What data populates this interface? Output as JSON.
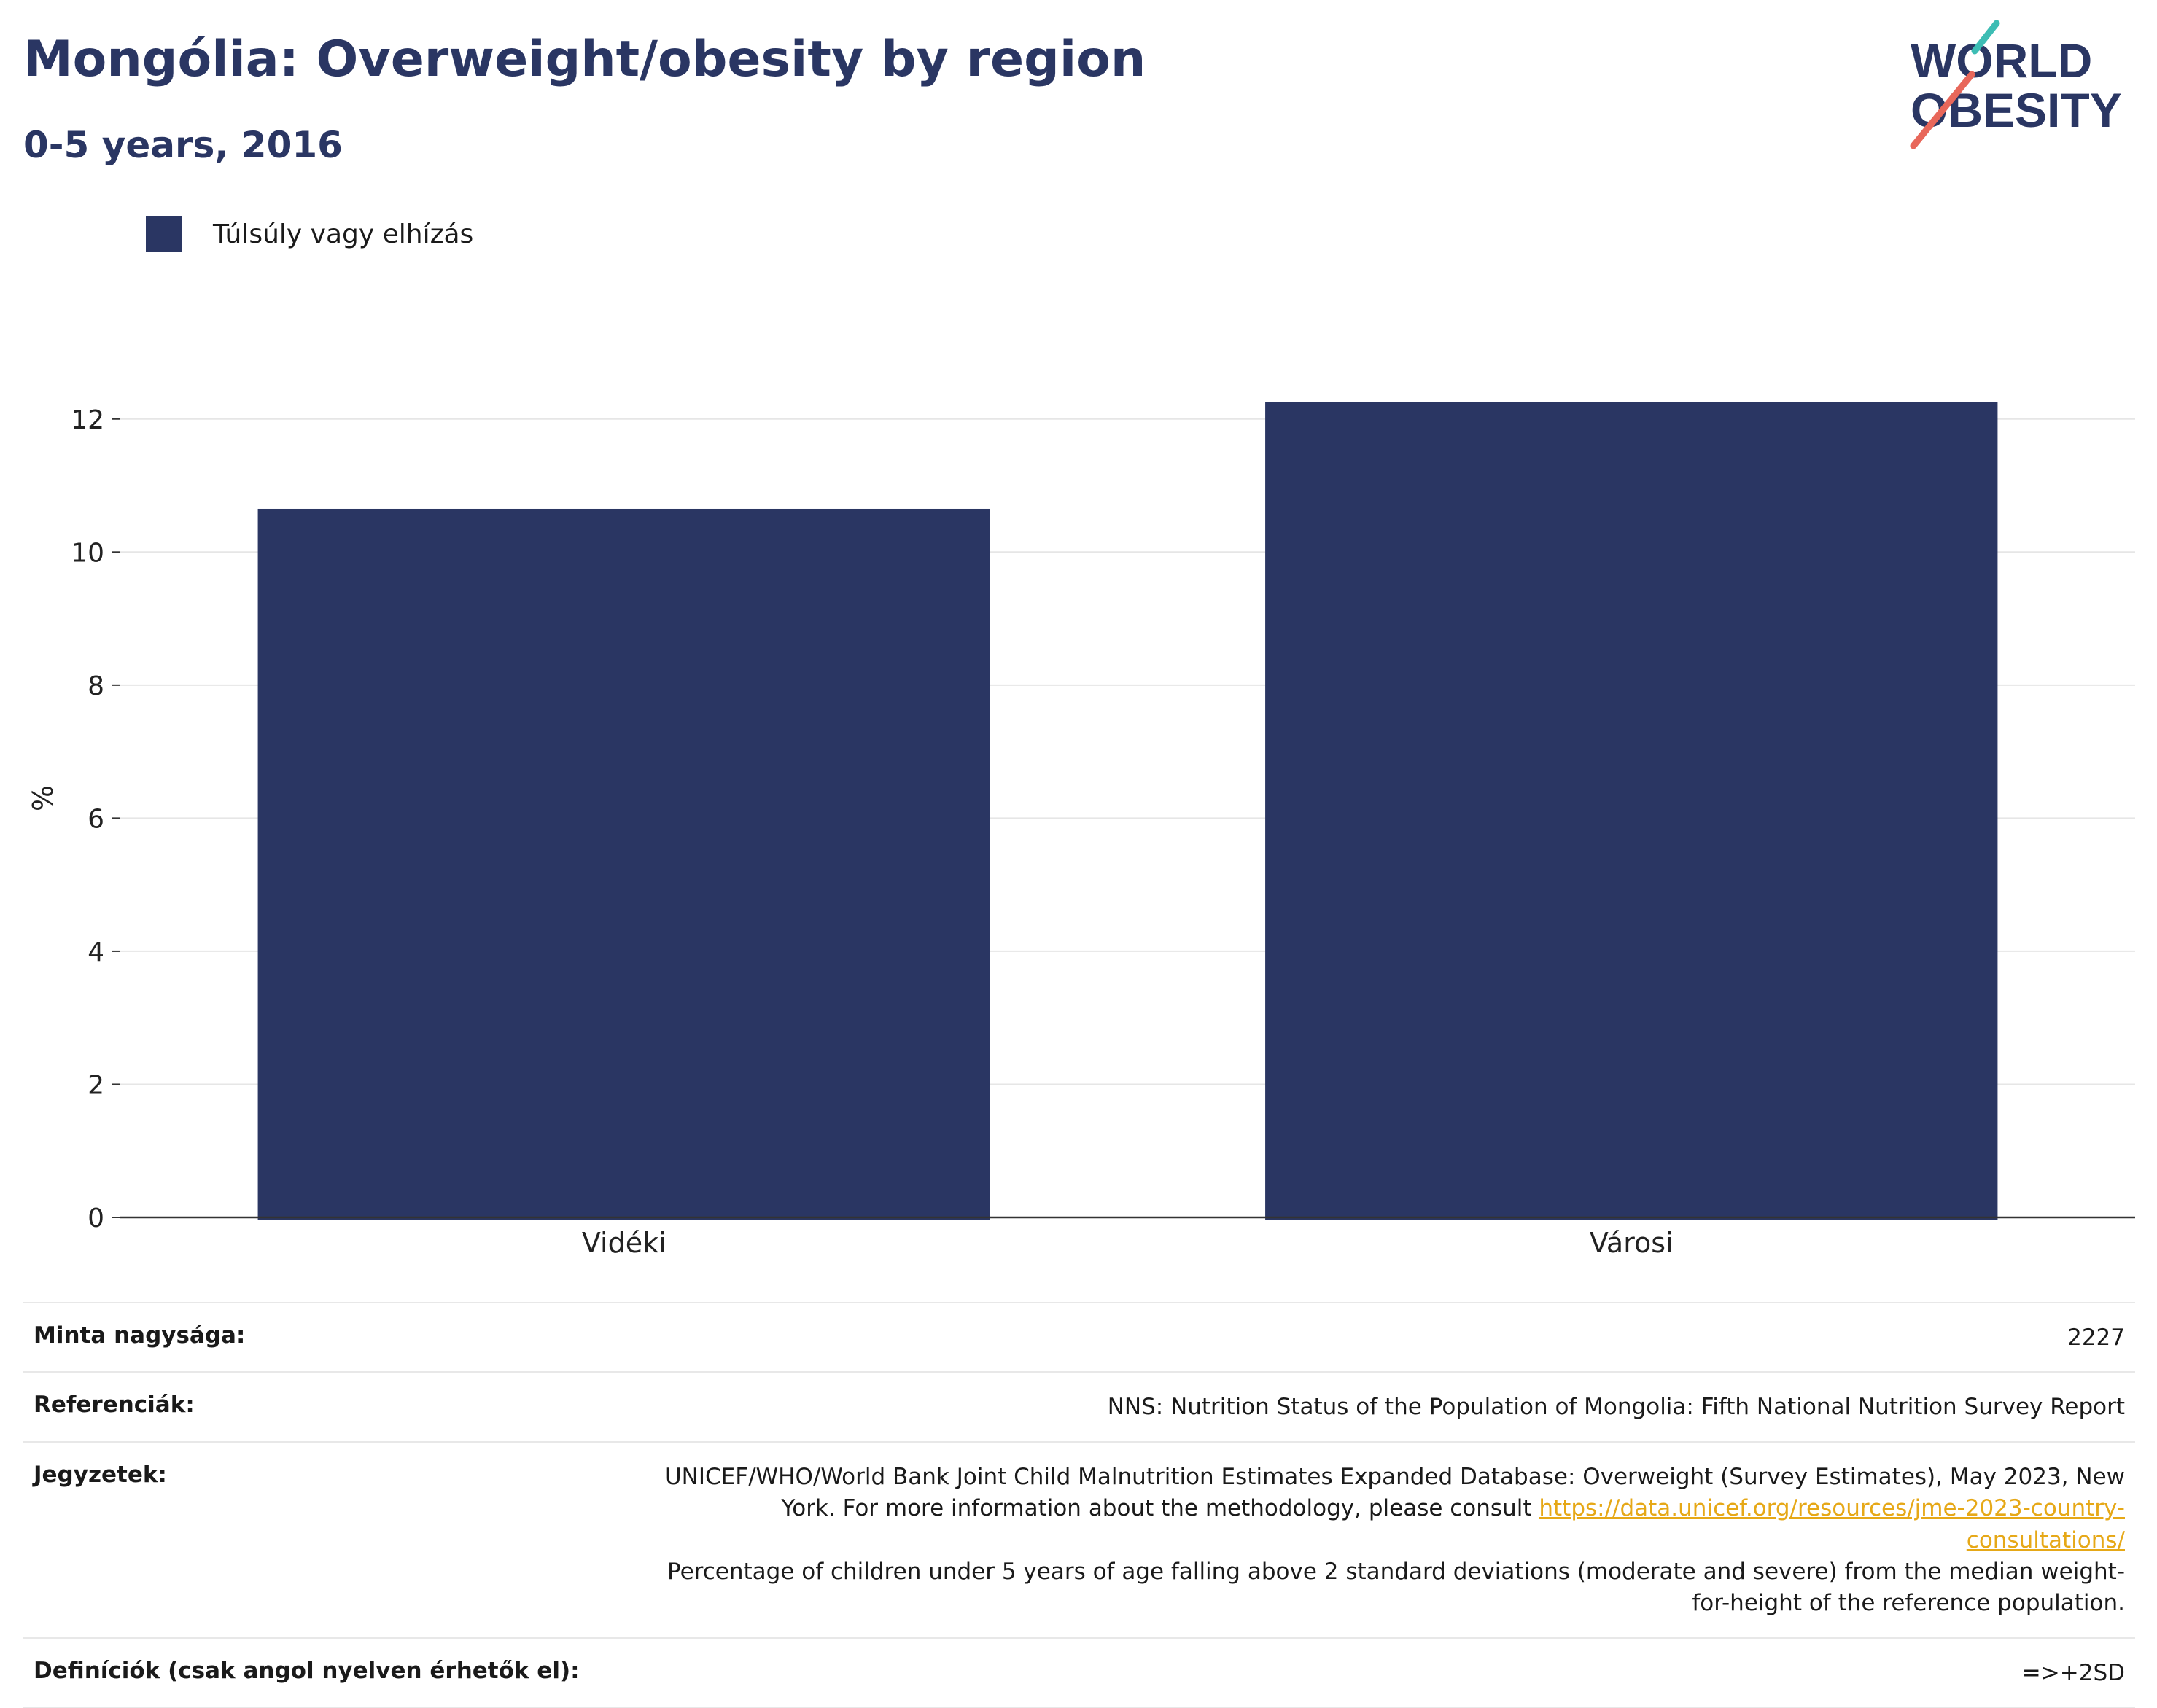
{
  "header": {
    "title": "Mongólia: Overweight/obesity by region",
    "subtitle": "0-5 years, 2016"
  },
  "logo": {
    "line1": "WORLD",
    "line2": "OBESITY",
    "accent_teal": "#3dbdb4",
    "accent_coral": "#e8675a"
  },
  "colors": {
    "bar": "#2a3663",
    "title": "#2a3663",
    "link": "#e6a817"
  },
  "chart_data": {
    "type": "bar",
    "categories": [
      "Vidéki",
      "Városi"
    ],
    "series": [
      {
        "name": "Túlsúly vagy elhízás",
        "values": [
          10.65,
          12.25
        ]
      }
    ],
    "ylabel": "%",
    "xlabel": "",
    "ylim": [
      0,
      12.6
    ],
    "yticks": [
      0,
      2,
      4,
      6,
      8,
      10,
      12
    ],
    "grid": true,
    "legend": "top-left"
  },
  "meta": {
    "sample_label": "Minta nagysága:",
    "sample_value": "2227",
    "refs_label": "Referenciák:",
    "refs_value": "NNS: Nutrition Status of the Population of Mongolia: Fifth National Nutrition Survey Report",
    "notes_label": "Jegyzetek:",
    "notes_text1": "UNICEF/WHO/World Bank Joint Child Malnutrition Estimates Expanded Database: Overweight (Survey Estimates), May 2023, New York. For more information about the methodology, please consult ",
    "notes_link": "https://data.unicef.org/resources/jme-2023-country-consultations/",
    "notes_text2": "Percentage of children under 5 years of age falling above 2 standard deviations (moderate and severe) from the median weight-for-height of the reference population.",
    "defs_label": "Definíciók (csak angol nyelven érhetők el):",
    "defs_value": "=>+2SD"
  }
}
